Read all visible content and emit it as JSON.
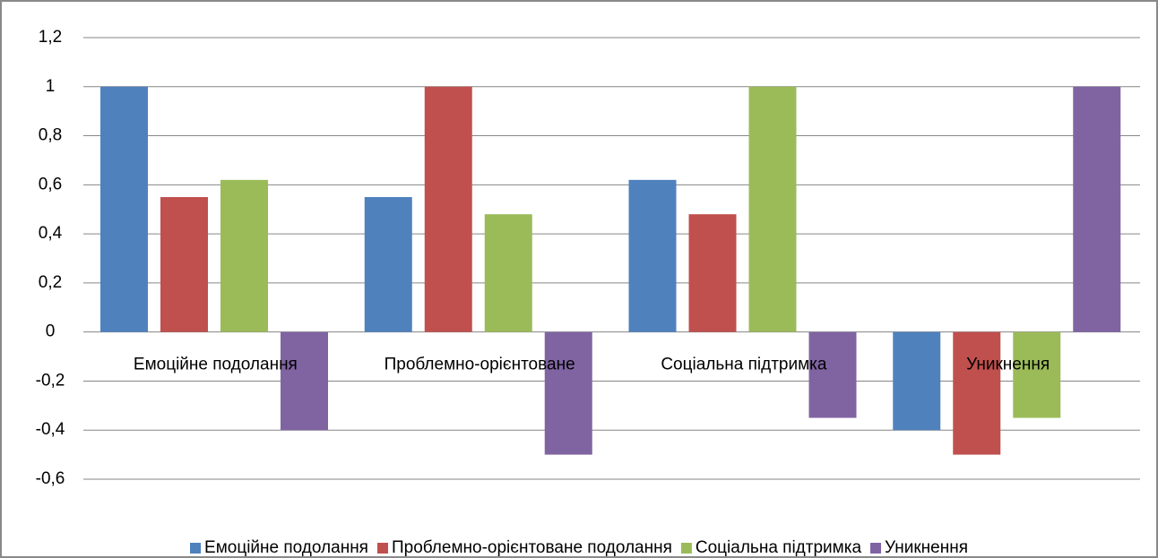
{
  "chart_data": {
    "type": "bar",
    "categories": [
      "Емоційне подолання",
      "Проблемно-орієнтоване",
      "Соціальна підтримка",
      "Уникнення"
    ],
    "series": [
      {
        "name": "Емоційне подолання",
        "color": "#4f81bd",
        "values": [
          1,
          0.55,
          0.62,
          -0.4
        ]
      },
      {
        "name": "Проблемно-орієнтоване подолання",
        "color": "#c0504d",
        "values": [
          0.55,
          1,
          0.48,
          -0.5
        ]
      },
      {
        "name": "Соціальна підтримка",
        "color": "#9bbb59",
        "values": [
          0.62,
          0.48,
          1,
          -0.35
        ]
      },
      {
        "name": "Уникнення",
        "color": "#8064a2",
        "values": [
          -0.4,
          -0.5,
          -0.35,
          1
        ]
      }
    ],
    "ylim": [
      -0.6,
      1.2
    ],
    "yticks": [
      {
        "value": -0.6,
        "label": "-0,6"
      },
      {
        "value": -0.4,
        "label": "-0,4"
      },
      {
        "value": -0.2,
        "label": "-0,2"
      },
      0,
      {
        "value": 0.2,
        "label": "0,2"
      },
      {
        "value": 0.4,
        "label": "0,4"
      },
      {
        "value": 0.6,
        "label": "0,6"
      },
      {
        "value": 0.8,
        "label": "0,8"
      },
      1,
      {
        "value": 1.2,
        "label": "1,2"
      }
    ],
    "grid": true,
    "legend": "bottom"
  }
}
